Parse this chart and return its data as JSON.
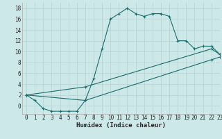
{
  "xlabel": "Humidex (Indice chaleur)",
  "bg_color": "#cce8e8",
  "grid_color": "#b8d4d4",
  "line_color": "#1a6b6b",
  "series": [
    {
      "x": [
        0,
        1,
        2,
        3,
        4,
        5,
        6,
        7,
        8,
        9,
        10,
        11,
        12,
        13,
        14,
        15,
        16,
        17,
        18,
        19,
        20,
        21,
        22,
        23
      ],
      "y": [
        2,
        1,
        -0.5,
        -1,
        -1,
        -1,
        -1,
        1,
        5,
        10.5,
        16,
        17,
        18,
        17,
        16.5,
        17,
        17,
        16.5,
        12,
        12,
        10.5,
        11,
        11,
        9.5
      ]
    },
    {
      "x": [
        0,
        7,
        22,
        23
      ],
      "y": [
        2,
        3.5,
        10.5,
        9.5
      ]
    },
    {
      "x": [
        0,
        7,
        22,
        23
      ],
      "y": [
        2,
        1,
        8.5,
        9.0
      ]
    }
  ],
  "ylim": [
    -1.5,
    19
  ],
  "xlim": [
    -0.5,
    23
  ],
  "yticks": [
    0,
    2,
    4,
    6,
    8,
    10,
    12,
    14,
    16,
    18
  ],
  "xticks": [
    0,
    1,
    2,
    3,
    4,
    5,
    6,
    7,
    8,
    9,
    10,
    11,
    12,
    13,
    14,
    15,
    16,
    17,
    18,
    19,
    20,
    21,
    22,
    23
  ]
}
